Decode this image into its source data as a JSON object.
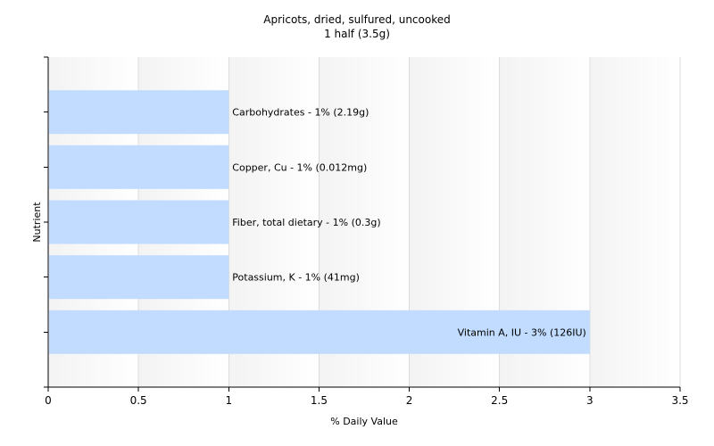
{
  "chart_data": {
    "type": "bar",
    "orientation": "horizontal",
    "title": "Apricots, dried, sulfured, uncooked",
    "subtitle": "1 half (3.5g)",
    "xlabel": "% Daily Value",
    "ylabel": "Nutrient",
    "xlim": [
      0,
      3.5
    ],
    "xticks": [
      "0",
      "0.5",
      "1",
      "1.5",
      "2",
      "2.5",
      "3",
      "3.5"
    ],
    "grid": true,
    "bar_color": "#c2dcff",
    "categories": [
      "Carbohydrates",
      "Copper, Cu",
      "Fiber, total dietary",
      "Potassium, K",
      "Vitamin A, IU"
    ],
    "values": [
      1,
      1,
      1,
      1,
      3
    ],
    "labels": [
      "Carbohydrates - 1% (2.19g)",
      "Copper, Cu - 1% (0.012mg)",
      "Fiber, total dietary - 1% (0.3g)",
      "Potassium, K - 1% (41mg)",
      "Vitamin A, IU - 3% (126IU)"
    ]
  }
}
